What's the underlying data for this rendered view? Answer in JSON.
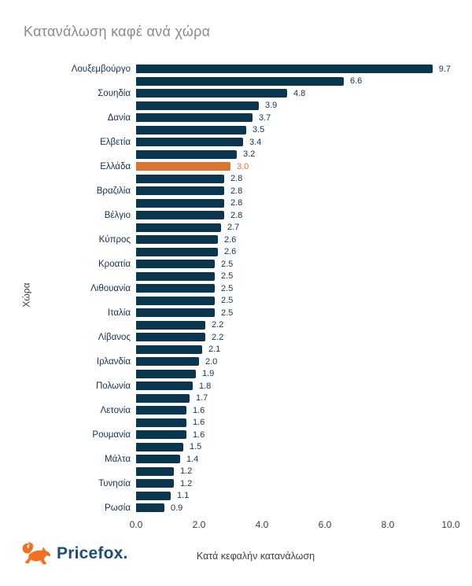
{
  "title": "Κατανάλωση καφέ ανά χώρα",
  "y_axis_label": "Χώρα",
  "x_axis_label": "Κατά κεφαλήν κατανάλωση",
  "logo": {
    "text": "Pricefox",
    "suffix": "."
  },
  "colors": {
    "bar": "#0a3650",
    "highlight_bar": "#d9752f",
    "title": "#8a8a8a",
    "country_label": "#15314b",
    "value_label": "#0f3553",
    "highlight_value_label": "#d9752f",
    "axis_text": "#3d3d3d",
    "logo_text": "#1d4e79",
    "logo_fox": "#ef7222",
    "background": "#ffffff"
  },
  "chart_data": {
    "type": "bar",
    "orientation": "horizontal",
    "title": "Κατανάλωση καφέ ανά χώρα",
    "xlabel": "Κατά κεφαλήν κατανάλωση",
    "ylabel": "Χώρα",
    "xlim": [
      0,
      10
    ],
    "x_ticks": [
      "0.0",
      "2.0",
      "4.0",
      "6.0",
      "8.0",
      "10.0"
    ],
    "grid": false,
    "legend": false,
    "highlight_category": "Ελλάδα",
    "bars": [
      {
        "label": "Λουξεμβούργο",
        "value": 9.7,
        "display": "9.7",
        "highlighted": false
      },
      {
        "label": "",
        "value": 6.6,
        "display": "6.6",
        "highlighted": false
      },
      {
        "label": "Σουηδία",
        "value": 4.8,
        "display": "4.8",
        "highlighted": false
      },
      {
        "label": "",
        "value": 3.9,
        "display": "3.9",
        "highlighted": false
      },
      {
        "label": "Δανία",
        "value": 3.7,
        "display": "3.7",
        "highlighted": false
      },
      {
        "label": "",
        "value": 3.5,
        "display": "3.5",
        "highlighted": false
      },
      {
        "label": "Ελβετία",
        "value": 3.4,
        "display": "3.4",
        "highlighted": false
      },
      {
        "label": "",
        "value": 3.2,
        "display": "3.2",
        "highlighted": false
      },
      {
        "label": "Ελλάδα",
        "value": 3.0,
        "display": "3.0",
        "highlighted": true
      },
      {
        "label": "",
        "value": 2.8,
        "display": "2.8",
        "highlighted": false
      },
      {
        "label": "Βραζιλία",
        "value": 2.8,
        "display": "2.8",
        "highlighted": false
      },
      {
        "label": "",
        "value": 2.8,
        "display": "2.8",
        "highlighted": false
      },
      {
        "label": "Βέλγιο",
        "value": 2.8,
        "display": "2.8",
        "highlighted": false
      },
      {
        "label": "",
        "value": 2.7,
        "display": "2.7",
        "highlighted": false
      },
      {
        "label": "Κύπρος",
        "value": 2.6,
        "display": "2.6",
        "highlighted": false
      },
      {
        "label": "",
        "value": 2.6,
        "display": "2.6",
        "highlighted": false
      },
      {
        "label": "Κροατία",
        "value": 2.5,
        "display": "2.5",
        "highlighted": false
      },
      {
        "label": "",
        "value": 2.5,
        "display": "2.5",
        "highlighted": false
      },
      {
        "label": "Λιθουανία",
        "value": 2.5,
        "display": "2.5",
        "highlighted": false
      },
      {
        "label": "",
        "value": 2.5,
        "display": "2.5",
        "highlighted": false
      },
      {
        "label": "Ιταλία",
        "value": 2.5,
        "display": "2.5",
        "highlighted": false
      },
      {
        "label": "",
        "value": 2.2,
        "display": "2.2",
        "highlighted": false
      },
      {
        "label": "Λίβανος",
        "value": 2.2,
        "display": "2.2",
        "highlighted": false
      },
      {
        "label": "",
        "value": 2.1,
        "display": "2.1",
        "highlighted": false
      },
      {
        "label": "Ιρλανδία",
        "value": 2.0,
        "display": "2.0",
        "highlighted": false
      },
      {
        "label": "",
        "value": 1.9,
        "display": "1.9",
        "highlighted": false
      },
      {
        "label": "Πολωνία",
        "value": 1.8,
        "display": "1.8",
        "highlighted": false
      },
      {
        "label": "",
        "value": 1.7,
        "display": "1.7",
        "highlighted": false
      },
      {
        "label": "Λετονία",
        "value": 1.6,
        "display": "1.6",
        "highlighted": false
      },
      {
        "label": "",
        "value": 1.6,
        "display": "1.6",
        "highlighted": false
      },
      {
        "label": "Ρουμανία",
        "value": 1.6,
        "display": "1.6",
        "highlighted": false
      },
      {
        "label": "",
        "value": 1.5,
        "display": "1.5",
        "highlighted": false
      },
      {
        "label": "Μάλτα",
        "value": 1.4,
        "display": "1.4",
        "highlighted": false
      },
      {
        "label": "",
        "value": 1.2,
        "display": "1.2",
        "highlighted": false
      },
      {
        "label": "Τυνησία",
        "value": 1.2,
        "display": "1.2",
        "highlighted": false
      },
      {
        "label": "",
        "value": 1.1,
        "display": "1.1",
        "highlighted": false
      },
      {
        "label": "Ρωσία",
        "value": 0.9,
        "display": "0.9",
        "highlighted": false
      }
    ]
  }
}
